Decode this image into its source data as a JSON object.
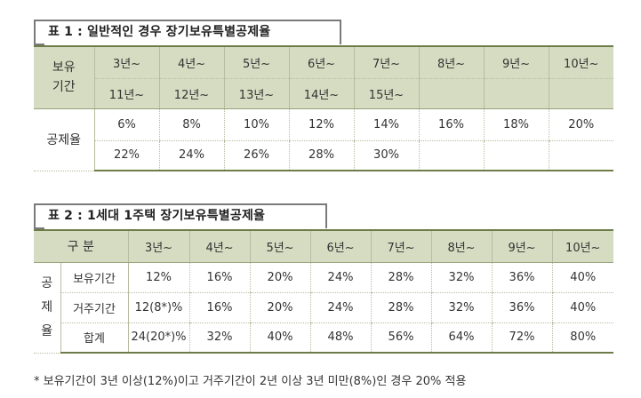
{
  "table1": {
    "title": "표 1 : 일반적인 경우 장기보유특별공제율",
    "row_header_1": "보유",
    "row_header_2": "기간",
    "periods_a": [
      "3년~",
      "4년~",
      "5년~",
      "6년~",
      "7년~",
      "8년~",
      "9년~",
      "10년~"
    ],
    "periods_b": [
      "11년~",
      "12년~",
      "13년~",
      "14년~",
      "15년~",
      "",
      "",
      ""
    ],
    "rate_label": "공제율",
    "rates_a": [
      "6%",
      "8%",
      "10%",
      "12%",
      "14%",
      "16%",
      "18%",
      "20%"
    ],
    "rates_b": [
      "22%",
      "24%",
      "26%",
      "28%",
      "30%",
      "",
      "",
      ""
    ]
  },
  "table2": {
    "title": "표 2 : 1세대 1주택 장기보유특별공제율",
    "header_label": "구 분",
    "periods": [
      "3년~",
      "4년~",
      "5년~",
      "6년~",
      "7년~",
      "8년~",
      "9년~",
      "10년~"
    ],
    "side_label_1": "공",
    "side_label_2": "제",
    "side_label_3": "율",
    "rows": [
      {
        "label": "보유기간",
        "values": [
          "12%",
          "16%",
          "20%",
          "24%",
          "28%",
          "32%",
          "36%",
          "40%"
        ]
      },
      {
        "label": "거주기간",
        "values": [
          "12(8*)%",
          "16%",
          "20%",
          "24%",
          "28%",
          "32%",
          "36%",
          "40%"
        ]
      },
      {
        "label": "합계",
        "values": [
          "24(20*)%",
          "32%",
          "40%",
          "48%",
          "56%",
          "64%",
          "72%",
          "80%"
        ]
      }
    ]
  },
  "footnote": "* 보유기간이 3년 이상(12%)이고 거주기간이 2년 이상 3년 미만(8%)인 경우 20% 적용"
}
